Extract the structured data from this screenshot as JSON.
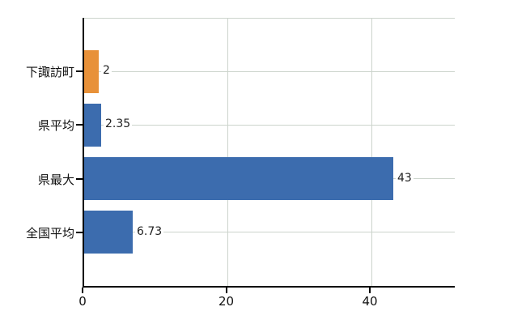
{
  "chart_data": {
    "type": "bar",
    "orientation": "horizontal",
    "title": "",
    "xlabel": "",
    "ylabel": "",
    "categories": [
      "下諏訪町",
      "県平均",
      "県最大",
      "全国平均"
    ],
    "values": [
      2,
      2.35,
      43,
      6.73
    ],
    "value_labels": [
      "2",
      "2.35",
      "43",
      "6.73"
    ],
    "bar_colors": [
      "#e89139",
      "#3c6cae",
      "#3c6cae",
      "#3c6cae"
    ],
    "x_ticks": [
      0,
      20,
      40
    ],
    "x_tick_labels": [
      "0",
      "20",
      "40"
    ],
    "xlim": [
      0,
      51.6
    ],
    "grid": true,
    "legend": false,
    "colors": {
      "highlight_bar": "#e89139",
      "default_bar": "#3c6cae",
      "gridline": "#ccd4cc",
      "axis": "#000000",
      "text": "#111111",
      "value_text": "#222222",
      "background": "#ffffff"
    }
  }
}
